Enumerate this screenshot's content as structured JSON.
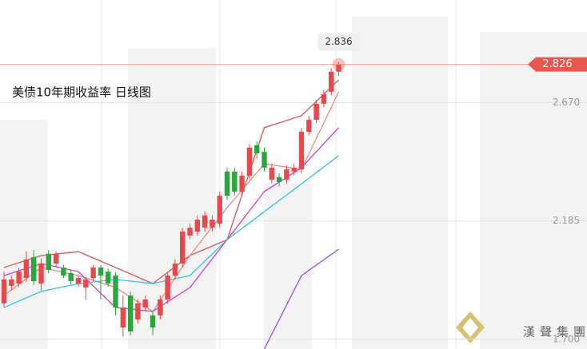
{
  "chart_data": {
    "type": "candlestick",
    "title": "美债10年期收益率  日线图",
    "watermark": "漢聲集團",
    "ylim": [
      1.66,
      3.09
    ],
    "yticks": [
      {
        "value": 2.67,
        "label": "2.670"
      },
      {
        "value": 2.185,
        "label": "2.185"
      },
      {
        "value": 1.7,
        "label": "1.700"
      }
    ],
    "grid": true,
    "up_color": "#e8474c",
    "down_color": "#2aa73a",
    "ohlc": [
      [
        1.847,
        1.977,
        1.83,
        1.945
      ],
      [
        1.919,
        1.961,
        1.9,
        1.945
      ],
      [
        1.928,
        1.994,
        1.912,
        1.977
      ],
      [
        1.951,
        2.06,
        1.935,
        2.027
      ],
      [
        2.036,
        2.066,
        1.922,
        1.938
      ],
      [
        1.928,
        2.03,
        1.9,
        2.01
      ],
      [
        2.05,
        2.066,
        1.97,
        1.984
      ],
      [
        2.01,
        2.06,
        1.995,
        2.05
      ],
      [
        1.994,
        2.005,
        1.95,
        1.961
      ],
      [
        1.971,
        1.985,
        1.925,
        1.938
      ],
      [
        1.928,
        1.96,
        1.915,
        1.951
      ],
      [
        1.912,
        1.955,
        1.863,
        1.945
      ],
      [
        1.951,
        2.005,
        1.94,
        1.994
      ],
      [
        1.994,
        2.005,
        1.863,
        1.961
      ],
      [
        1.977,
        1.99,
        1.915,
        1.928
      ],
      [
        1.961,
        1.975,
        1.798,
        1.83
      ],
      [
        1.748,
        1.879,
        1.712,
        1.83
      ],
      [
        1.879,
        1.895,
        1.716,
        1.732
      ],
      [
        1.781,
        1.863,
        1.765,
        1.847
      ],
      [
        1.83,
        1.879,
        1.815,
        1.863
      ],
      [
        1.798,
        1.815,
        1.716,
        1.748
      ],
      [
        1.798,
        1.879,
        1.781,
        1.863
      ],
      [
        1.863,
        1.977,
        1.847,
        1.961
      ],
      [
        1.961,
        2.027,
        1.945,
        2.01
      ],
      [
        2.01,
        2.157,
        1.994,
        2.141
      ],
      [
        2.125,
        2.174,
        2.11,
        2.157
      ],
      [
        2.141,
        2.207,
        2.125,
        2.19
      ],
      [
        2.157,
        2.225,
        2.141,
        2.207
      ],
      [
        2.157,
        2.207,
        2.141,
        2.19
      ],
      [
        2.174,
        2.305,
        2.157,
        2.288
      ],
      [
        2.387,
        2.403,
        2.27,
        2.288
      ],
      [
        2.387,
        2.403,
        2.288,
        2.305
      ],
      [
        2.305,
        2.387,
        2.288,
        2.37
      ],
      [
        2.37,
        2.5,
        2.354,
        2.485
      ],
      [
        2.495,
        2.51,
        2.44,
        2.462
      ],
      [
        2.468,
        2.485,
        2.387,
        2.403
      ],
      [
        2.354,
        2.42,
        2.338,
        2.403
      ],
      [
        2.364,
        2.38,
        2.325,
        2.344
      ],
      [
        2.354,
        2.412,
        2.338,
        2.396
      ],
      [
        2.387,
        2.42,
        2.37,
        2.403
      ],
      [
        2.396,
        2.566,
        2.38,
        2.55
      ],
      [
        2.55,
        2.615,
        2.535,
        2.599
      ],
      [
        2.599,
        2.68,
        2.585,
        2.665
      ],
      [
        2.665,
        2.72,
        2.65,
        2.704
      ],
      [
        2.714,
        2.81,
        2.7,
        2.796
      ],
      [
        2.796,
        2.836,
        2.78,
        2.826
      ]
    ],
    "lines": [
      {
        "color": "#d9534f",
        "x": [
          0,
          5,
          10,
          15,
          20,
          25,
          30,
          35,
          40,
          45
        ],
        "values": [
          1.994,
          2.043,
          2.059,
          1.994,
          1.928,
          2.043,
          2.108,
          2.567,
          2.616,
          2.763
        ]
      },
      {
        "color": "#f08a80",
        "x": [
          0,
          5,
          10,
          15,
          20,
          25,
          30,
          35,
          40,
          45
        ],
        "values": [
          1.879,
          1.994,
          1.961,
          1.912,
          1.814,
          2.043,
          2.239,
          2.419,
          2.396,
          2.714
        ]
      },
      {
        "color": "#d63ad6",
        "x": [
          0,
          5,
          10,
          15,
          20,
          25,
          30,
          35,
          40,
          45
        ],
        "values": [
          1.961,
          2.01,
          1.977,
          1.83,
          1.814,
          1.912,
          2.108,
          2.305,
          2.403,
          2.567
        ]
      },
      {
        "color": "#2ec4e0",
        "x": [
          0,
          5,
          10,
          15,
          20,
          25,
          30,
          35,
          40,
          45
        ],
        "values": [
          1.83,
          1.896,
          1.928,
          1.945,
          1.928,
          1.961,
          2.108,
          2.223,
          2.337,
          2.452
        ]
      },
      {
        "color": "#9b4de0",
        "x": [
          35,
          40,
          45
        ],
        "values": [
          1.66,
          1.961,
          2.069
        ]
      }
    ]
  }
}
